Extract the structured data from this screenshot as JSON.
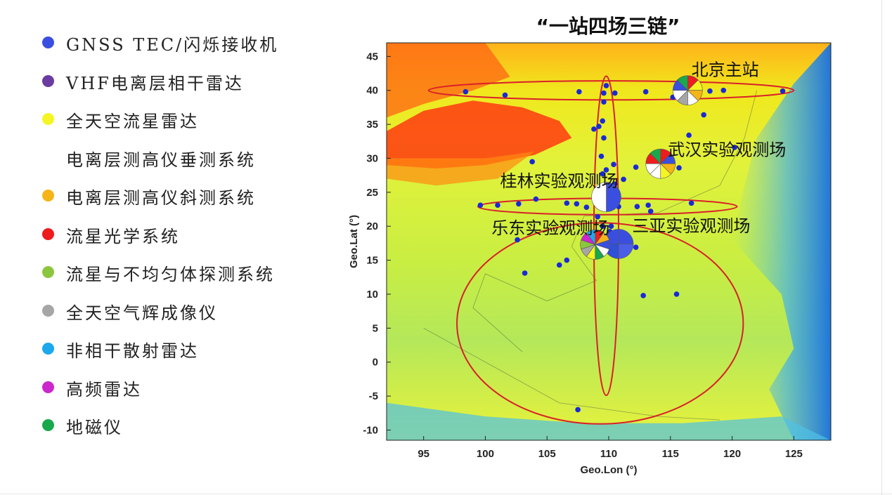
{
  "title": "“一站四场三链”",
  "legend": [
    {
      "label": "GNSS TEC/闪烁接收机",
      "color": "#3a4fe0"
    },
    {
      "label": "VHF电离层相干雷达",
      "color": "#6a3ba0"
    },
    {
      "label": "全天空流星雷达",
      "color": "#f5f523"
    },
    {
      "label": "电离层测高仪垂测系统",
      "color": null
    },
    {
      "label": "电离层测高仪斜测系统",
      "color": "#f5b417"
    },
    {
      "label": "流星光学系统",
      "color": "#ee1c1c"
    },
    {
      "label": "流星与不均匀体探测系统",
      "color": "#8cc63f"
    },
    {
      "label": "全天空气辉成像仪",
      "color": "#a6a6a6"
    },
    {
      "label": "非相干散射雷达",
      "color": "#1ca8ec"
    },
    {
      "label": "高频雷达",
      "color": "#cc27cc"
    },
    {
      "label": "地磁仪",
      "color": "#19a84b"
    }
  ],
  "chart_data": {
    "type": "scatter",
    "xlabel": "Geo.Lon (°)",
    "ylabel": "Geo.Lat (°)",
    "xlim": [
      92,
      128
    ],
    "ylim": [
      -11.5,
      47
    ],
    "xticks": [
      95,
      100,
      105,
      110,
      115,
      120,
      125
    ],
    "yticks": [
      -10,
      -5,
      0,
      5,
      10,
      15,
      20,
      25,
      30,
      35,
      40,
      45
    ],
    "point_color": "#1a2ad6",
    "chain_color": "#d9202a",
    "points": [
      [
        98.4,
        39.8
      ],
      [
        101.6,
        39.3
      ],
      [
        107.6,
        39.8
      ],
      [
        109.8,
        40.7
      ],
      [
        109.6,
        39.6
      ],
      [
        110.5,
        39.6
      ],
      [
        113.0,
        39.8
      ],
      [
        115.2,
        39.0
      ],
      [
        116.7,
        39.8
      ],
      [
        118.2,
        39.9
      ],
      [
        119.3,
        40.0
      ],
      [
        124.1,
        39.9
      ],
      [
        117.7,
        36.4
      ],
      [
        109.6,
        38.3
      ],
      [
        109.5,
        35.5
      ],
      [
        109.2,
        34.7
      ],
      [
        108.8,
        34.3
      ],
      [
        109.6,
        33.0
      ],
      [
        116.5,
        33.4
      ],
      [
        120.2,
        31.6
      ],
      [
        114.3,
        30.9
      ],
      [
        109.4,
        30.3
      ],
      [
        110.4,
        29.1
      ],
      [
        112.2,
        28.7
      ],
      [
        115.7,
        28.6
      ],
      [
        109.5,
        27.7
      ],
      [
        109.8,
        28.3
      ],
      [
        103.8,
        29.5
      ],
      [
        110.2,
        25.4
      ],
      [
        110.5,
        26.2
      ],
      [
        111.2,
        26.9
      ],
      [
        104.1,
        24.0
      ],
      [
        102.7,
        23.3
      ],
      [
        101.0,
        23.1
      ],
      [
        99.6,
        23.1
      ],
      [
        106.6,
        23.4
      ],
      [
        107.4,
        23.3
      ],
      [
        108.2,
        22.8
      ],
      [
        110.8,
        22.9
      ],
      [
        112.3,
        22.9
      ],
      [
        113.2,
        23.1
      ],
      [
        113.4,
        22.2
      ],
      [
        116.7,
        23.4
      ],
      [
        109.1,
        21.4
      ],
      [
        109.5,
        20.0
      ],
      [
        110.2,
        20.0
      ],
      [
        108.9,
        19.0
      ],
      [
        110.1,
        19.2
      ],
      [
        110.3,
        18.6
      ],
      [
        109.7,
        18.3
      ],
      [
        112.2,
        16.9
      ],
      [
        106.6,
        15.0
      ],
      [
        106.0,
        14.3
      ],
      [
        103.2,
        13.1
      ],
      [
        112.8,
        9.8
      ],
      [
        115.5,
        10.0
      ],
      [
        102.6,
        18.0
      ],
      [
        107.5,
        -7.0
      ]
    ],
    "chains": [
      {
        "cx": 110.2,
        "cy": 40.0,
        "rx": 14.8,
        "ry": 1.4
      },
      {
        "cx": 109.9,
        "cy": 22.9,
        "rx": 10.5,
        "ry": 1.2
      },
      {
        "cx": 109.8,
        "cy": 18.6,
        "rx": 1.0,
        "ry": 23.5
      },
      {
        "cx": 109.3,
        "cy": 5.7,
        "rx": 11.6,
        "ry": 14.8
      }
    ],
    "stations": [
      {
        "name": "北京主站",
        "lon": 116.4,
        "lat": 40.0,
        "label_lon": 116.7,
        "label_lat": 42.2,
        "colors": [
          "#ee1c1c",
          "#f5f523",
          "#f5b417",
          "#ffffff",
          "#a6a6a6",
          "#ffffff",
          "#3a4fe0",
          "#19a84b"
        ]
      },
      {
        "name": "武汉实验观测场",
        "lon": 114.2,
        "lat": 29.2,
        "label_lon": 114.8,
        "label_lat": 30.4,
        "colors": [
          "#ee1c1c",
          "#3a4fe0",
          "#f5b417",
          "#f5f523",
          "#ffffff",
          "#ffffff",
          "#ee1c1c",
          "#19a84b"
        ]
      },
      {
        "name": "桂林实验观测场",
        "lon": 109.8,
        "lat": 24.3,
        "label_lon": 101.2,
        "label_lat": 25.8,
        "colors": [
          "#3a4fe0",
          "#ffffff"
        ]
      },
      {
        "name": "三亚实验观测场",
        "lon": 110.8,
        "lat": 17.4,
        "label_lon": 111.9,
        "label_lat": 19.2,
        "colors": [
          "#3a4fe0",
          "#4a5ee8",
          "#3050d6",
          "#3a4fe0"
        ]
      },
      {
        "name": "乐东实验观测场",
        "lon": 108.9,
        "lat": 17.3,
        "label_lon": 100.5,
        "label_lat": 18.9,
        "colors": [
          "#ee1c1c",
          "#f5b417",
          "#3a4fe0",
          "#ffffff",
          "#19a84b",
          "#f5f523",
          "#a6a6a6",
          "#8cc63f",
          "#cc27cc",
          "#1ca8ec"
        ]
      }
    ]
  }
}
